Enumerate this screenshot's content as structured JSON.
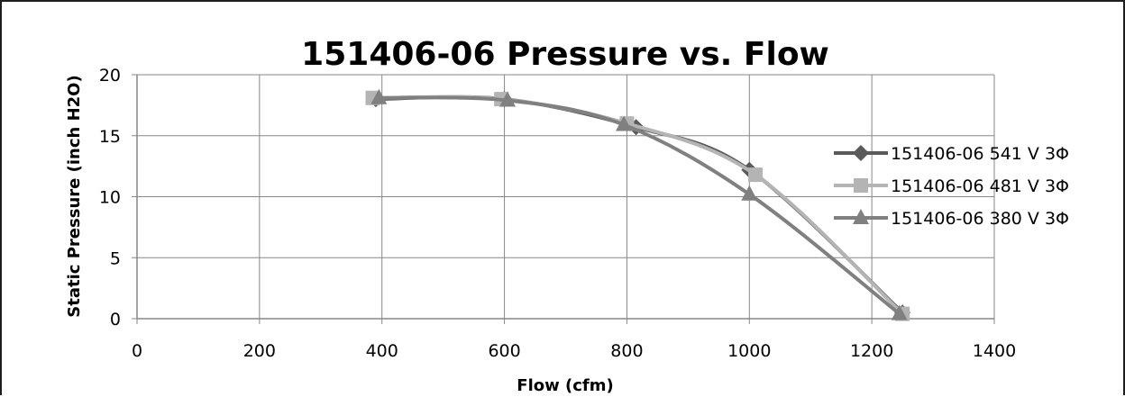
{
  "chart_data": {
    "type": "line",
    "title": "151406-06 Pressure vs. Flow",
    "xlabel": "Flow (cfm)",
    "ylabel": "Static Pressure (inch H2O)",
    "xlim": [
      0,
      1400
    ],
    "ylim": [
      0,
      20
    ],
    "x_ticks": [
      "0",
      "200",
      "400",
      "600",
      "800",
      "1000",
      "1200",
      "1400"
    ],
    "y_ticks": [
      "0",
      "5",
      "10",
      "15",
      "20"
    ],
    "grid": true,
    "legend_position": "right",
    "series": [
      {
        "name": "151406-06 541 V 3Φ",
        "marker": "diamond",
        "color": "#5a5a5a",
        "x": [
          390,
          600,
          815,
          1000,
          1250
        ],
        "y": [
          18.0,
          18.0,
          15.7,
          12.2,
          0.5
        ]
      },
      {
        "name": "151406-06 481 V 3Φ",
        "marker": "square",
        "color": "#b4b4b4",
        "x": [
          385,
          595,
          800,
          1010,
          1250
        ],
        "y": [
          18.1,
          18.0,
          16.0,
          11.8,
          0.4
        ]
      },
      {
        "name": "151406-06 380 V 3Φ",
        "marker": "triangle",
        "color": "#808080",
        "x": [
          395,
          605,
          795,
          1000,
          1245
        ],
        "y": [
          18.1,
          17.9,
          15.9,
          10.2,
          0.4
        ]
      }
    ]
  }
}
